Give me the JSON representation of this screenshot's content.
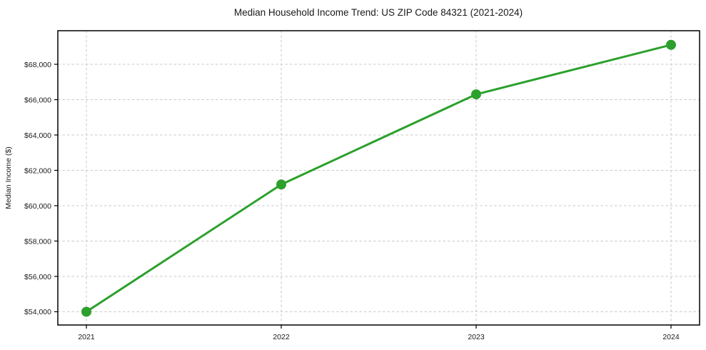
{
  "figure": {
    "background_color": "#ffffff",
    "text_color": "#1a1a1a",
    "grid_color": "#c9c9c9",
    "spine_color": "#000000"
  },
  "chart_data": {
    "type": "line",
    "title": "Median Household Income Trend: US ZIP Code 84321 (2021-2024)",
    "xlabel": "",
    "ylabel": "Median Income ($)",
    "x": [
      2021,
      2022,
      2023,
      2024
    ],
    "xtick_labels": [
      "2021",
      "2022",
      "2023",
      "2024"
    ],
    "series": [
      {
        "name": "Median Household Income",
        "values": [
          54000,
          61200,
          66300,
          69100
        ],
        "color": "#2ca02c",
        "marker": "circle",
        "line_width": 3,
        "marker_radius": 7
      }
    ],
    "ylim": [
      53250,
      69900
    ],
    "yticks": [
      54000,
      56000,
      58000,
      60000,
      62000,
      64000,
      66000,
      68000
    ],
    "ytick_labels": [
      "$54,000",
      "$56,000",
      "$58,000",
      "$60,000",
      "$62,000",
      "$64,000",
      "$66,000",
      "$68,000"
    ],
    "grid": true,
    "grid_style": "dashed",
    "legend": "none"
  }
}
